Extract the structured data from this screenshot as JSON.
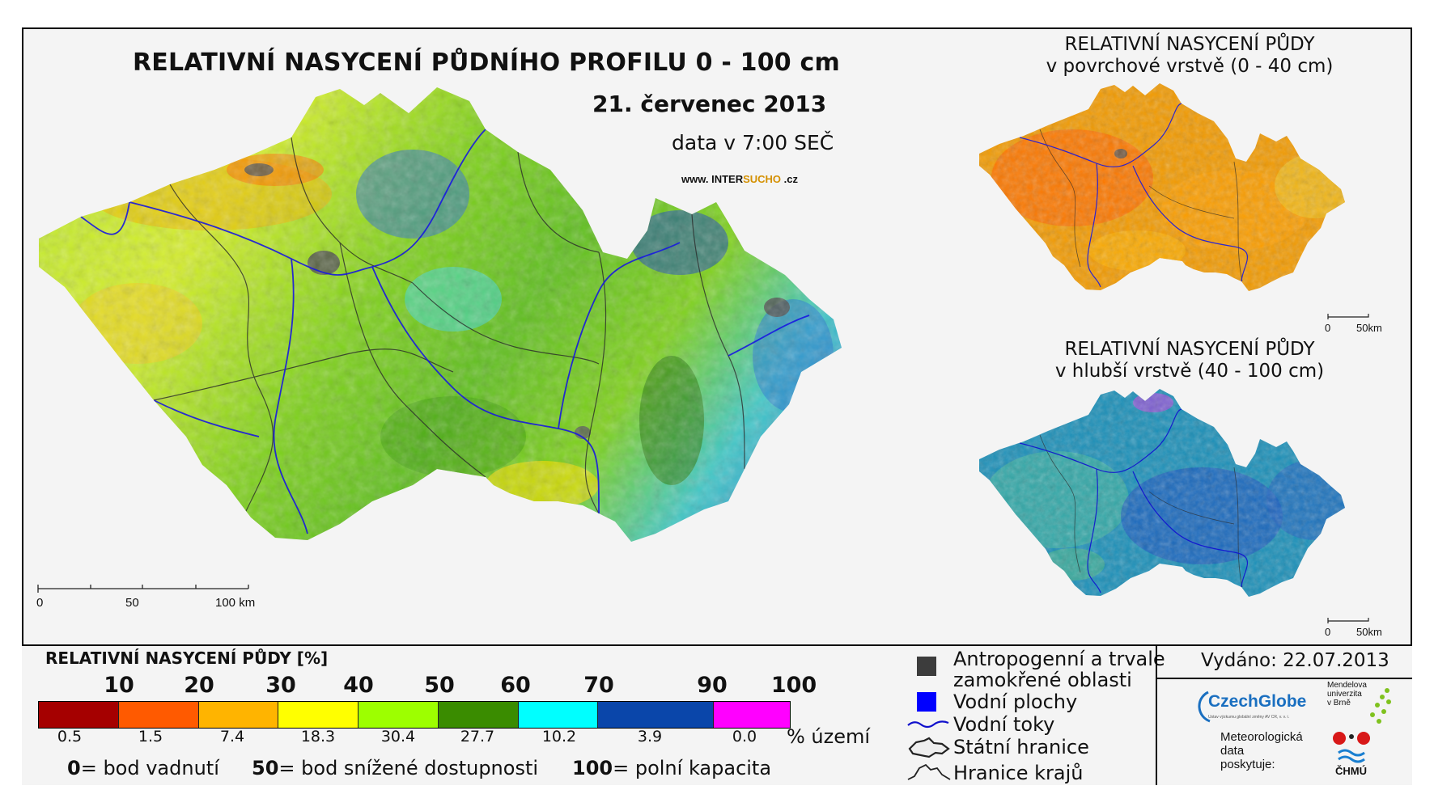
{
  "main_map": {
    "title": "RELATIVNÍ NASYCENÍ PŮDNÍHO PROFILU 0 - 100 cm",
    "date": "21. červenec 2013",
    "time": "data v 7:00 SEČ",
    "website_prefix": "www. INTER",
    "website_highlight": "SUCHO",
    "website_suffix": " .cz",
    "scale": [
      "0",
      "50",
      "100 km"
    ]
  },
  "inset_surface": {
    "title_line1": "RELATIVNÍ NASYCENÍ PŮDY",
    "title_line2": "v povrchové vrstvě (0 - 40 cm)",
    "scale": [
      "0",
      "50km"
    ]
  },
  "inset_deep": {
    "title_line1": "RELATIVNÍ NASYCENÍ PŮDY",
    "title_line2": "v hlubší vrstvě (40 - 100 cm)",
    "scale": [
      "0",
      "50km"
    ]
  },
  "legend": {
    "title": "RELATIVNÍ NASYCENÍ PŮDY [%]",
    "thresholds": [
      "10",
      "20",
      "30",
      "40",
      "50",
      "60",
      "70",
      "90",
      "100"
    ],
    "classes": [
      {
        "color": "#a50000",
        "percent": "0.5"
      },
      {
        "color": "#ff5a00",
        "percent": "1.5"
      },
      {
        "color": "#ffb400",
        "percent": "7.4"
      },
      {
        "color": "#ffff00",
        "percent": "18.3"
      },
      {
        "color": "#9dff00",
        "percent": "30.4"
      },
      {
        "color": "#3a8c00",
        "percent": "27.7"
      },
      {
        "color": "#00ffff",
        "percent": "10.2"
      },
      {
        "color": "#0a46aa",
        "percent": "3.9"
      },
      {
        "color": "#ff00ff",
        "percent": "0.0"
      }
    ],
    "unit": "% území",
    "definitions": [
      {
        "value": "0",
        "text": "= bod vadnutí"
      },
      {
        "value": "50",
        "text": "= bod snížené dostupnosti"
      },
      {
        "value": "100",
        "text": "= polní kapacita"
      }
    ]
  },
  "map_legend": {
    "anthropogenic_line1": "Antropogenní a trvale",
    "anthropogenic_line2": "zamokřené oblasti",
    "water_bodies": "Vodní plochy",
    "rivers": "Vodní toky",
    "state_border": "Státní hranice",
    "region_border": "Hranice krajů",
    "colors": {
      "anthropogenic": "#3c3c3c",
      "water": "#0000ff",
      "river": "#1010cc"
    }
  },
  "credits": {
    "issued": "Vydáno: 22.07.2013",
    "czechglobe": "CzechGlobe",
    "czechglobe_sub": "Ústav výzkumu globální změny AV ČR, v. v. i.",
    "mendel_lines": [
      "Mendelova",
      "univerzita",
      "v Brně"
    ],
    "provider_lines": [
      "Meteorologická",
      "data",
      "poskytuje:"
    ],
    "chmu": "ČHMÚ"
  }
}
